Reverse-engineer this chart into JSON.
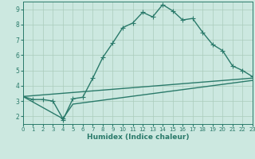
{
  "xlabel": "Humidex (Indice chaleur)",
  "background_color": "#cce8e0",
  "grid_color": "#aaccbb",
  "line_color": "#2a7a6a",
  "xlim": [
    0,
    23
  ],
  "ylim": [
    1.5,
    9.5
  ],
  "yticks": [
    2,
    3,
    4,
    5,
    6,
    7,
    8,
    9
  ],
  "xticks": [
    0,
    1,
    2,
    3,
    4,
    5,
    6,
    7,
    8,
    9,
    10,
    11,
    12,
    13,
    14,
    15,
    16,
    17,
    18,
    19,
    20,
    21,
    22,
    23
  ],
  "line1_x": [
    0,
    1,
    2,
    3,
    4,
    4,
    5,
    6,
    7,
    8,
    9,
    10,
    11,
    12,
    13,
    14,
    15,
    16,
    17,
    18,
    19,
    20,
    21,
    22,
    23
  ],
  "line1_y": [
    3.3,
    3.1,
    3.1,
    3.0,
    1.85,
    1.75,
    3.15,
    3.25,
    4.5,
    5.85,
    6.8,
    7.8,
    8.1,
    8.8,
    8.5,
    9.3,
    8.9,
    8.3,
    8.4,
    7.5,
    6.7,
    6.3,
    5.3,
    5.0,
    4.6
  ],
  "line2_x": [
    0,
    23
  ],
  "line2_y": [
    3.3,
    4.5
  ],
  "line3_x": [
    0,
    4,
    5,
    23
  ],
  "line3_y": [
    3.3,
    1.85,
    2.8,
    4.35
  ],
  "marker": "+",
  "markersize": 4,
  "linewidth": 1.0
}
